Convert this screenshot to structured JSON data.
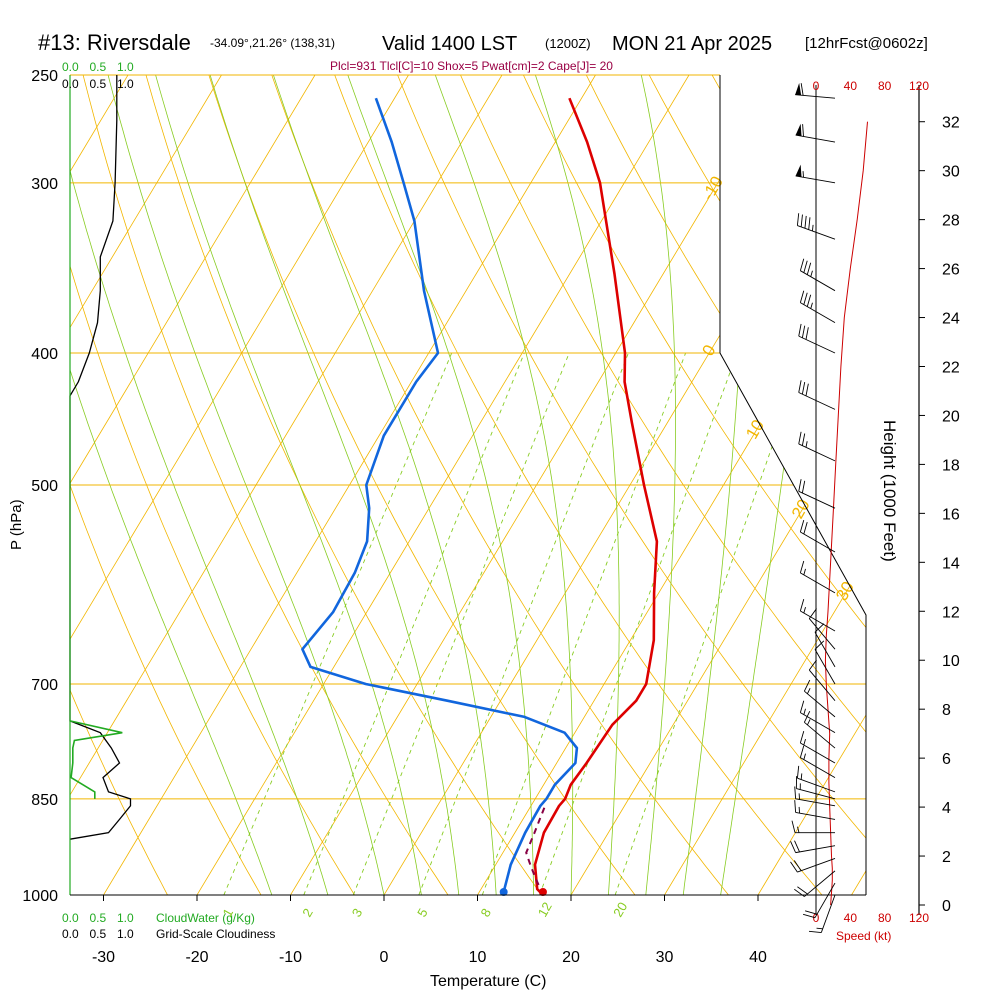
{
  "header": {
    "station": "#13: Riversdale",
    "coords": "-34.09°,21.26° (138,31)",
    "valid": "Valid 1400 LST",
    "zulu": "(1200Z)",
    "date": "MON 21 Apr 2025",
    "forecast": "[12hrFcst@0602z]",
    "indices": "Plcl=931 Tlcl[C]=10 Shox=5 Pwat[cm]=2 Cape[J]= 20"
  },
  "labels": {
    "ylabel": "P (hPa)",
    "xlabel": "Temperature (C)",
    "height_label": "Height (1000 Feet)",
    "speed_label": "Speed (kt)",
    "cloudwater_label": "CloudWater (g/Kg)",
    "cloudiness_label": "Grid-Scale Cloudiness"
  },
  "colors": {
    "isobar": "#f2b600",
    "dry_adiabat": "#f2b600",
    "moist_adiabat": "#88cc22",
    "mixing_ratio": "#88cc22",
    "temperature": "#dd0000",
    "dewpoint": "#1166dd",
    "parcel": "#880044",
    "cloudwater": "#22aa22",
    "cloudiness": "#000000",
    "windspeed": "#cc0000",
    "header_indices": "#990044"
  },
  "chart_data": {
    "type": "line",
    "plot": "skew-t",
    "pressure_ticks": [
      1000,
      850,
      700,
      500,
      400,
      300,
      250
    ],
    "temperature_ticks": [
      -30,
      -20,
      -10,
      0,
      10,
      20,
      30,
      40
    ],
    "height_ticks": [
      0,
      2,
      4,
      6,
      8,
      10,
      12,
      14,
      16,
      18,
      20,
      22,
      24,
      26,
      28,
      30,
      32
    ],
    "speed_ticks": [
      0,
      40,
      80,
      120
    ],
    "cloudwater_ticks": [
      "0.0",
      "0.5",
      "1.0"
    ],
    "cloudiness_ticks": [
      "0.0",
      "0.5",
      "1.0"
    ],
    "isotherm_labels": [
      "-30",
      "-20",
      "-10",
      "0",
      "10",
      "20",
      "30"
    ],
    "mixing_ratio_labels": [
      "1",
      "2",
      "3",
      "5",
      "8",
      "12",
      "20"
    ],
    "series": [
      {
        "name": "temperature",
        "p": [
          1000,
          990,
          950,
          900,
          860,
          850,
          830,
          800,
          750,
          720,
          700,
          650,
          600,
          550,
          500,
          450,
          420,
          400,
          350,
          300,
          280,
          260
        ],
        "t": [
          17,
          16,
          14.2,
          13.1,
          13,
          13.2,
          12.9,
          13.2,
          13.5,
          14.5,
          14.5,
          12.5,
          9.5,
          6.5,
          1.5,
          -3.8,
          -7.2,
          -9,
          -15.2,
          -22.6,
          -26.6,
          -31.3
        ]
      },
      {
        "name": "dewpoint",
        "p": [
          1000,
          990,
          950,
          900,
          860,
          850,
          830,
          800,
          780,
          760,
          740,
          720,
          700,
          680,
          660,
          620,
          580,
          550,
          520,
          500,
          460,
          420,
          400,
          360,
          320,
          300,
          280,
          260
        ],
        "td": [
          12.8,
          12.5,
          11.6,
          11.1,
          11,
          11.2,
          11.2,
          12,
          11.2,
          8.9,
          3.6,
          -5.7,
          -15.5,
          -22.5,
          -24.5,
          -23.6,
          -23.8,
          -24.5,
          -26.4,
          -28.2,
          -29.5,
          -29.5,
          -29,
          -34.5,
          -40,
          -43.6,
          -47.5,
          -52
        ]
      },
      {
        "name": "parcel",
        "p": [
          1000,
          970,
          950,
          931,
          900,
          880,
          860
        ],
        "t": [
          17,
          15,
          13.7,
          12.5,
          12.1,
          11.8,
          11.5
        ]
      }
    ],
    "surface_temperature": 17,
    "surface_dewpoint": 12.8,
    "wind_speed_kt": {
      "height_kft": [
        0,
        0.5,
        1,
        1.5,
        2,
        3,
        4,
        5,
        6,
        7,
        8,
        9,
        10,
        11,
        12,
        14,
        16,
        18,
        20,
        22,
        24,
        26,
        28,
        30,
        32
      ],
      "speed": [
        17,
        18,
        19,
        19,
        18,
        17,
        16,
        15,
        15,
        16,
        14,
        12,
        11,
        12,
        14,
        17,
        20,
        23,
        26,
        29,
        33,
        40,
        48,
        55,
        60
      ]
    },
    "wind_barbs": {
      "pressure": [
        1000,
        980,
        960,
        940,
        920,
        900,
        880,
        860,
        850,
        840,
        820,
        800,
        780,
        760,
        740,
        720,
        700,
        680,
        660,
        640,
        600,
        560,
        520,
        480,
        440,
        400,
        380,
        360,
        330,
        300,
        280,
        260
      ],
      "dir_deg": [
        200,
        210,
        230,
        250,
        260,
        270,
        280,
        280,
        285,
        290,
        300,
        300,
        310,
        300,
        310,
        320,
        330,
        330,
        320,
        300,
        300,
        300,
        295,
        295,
        295,
        295,
        300,
        300,
        290,
        280,
        280,
        275
      ],
      "speed_kt": [
        17,
        18,
        19,
        19,
        18,
        17,
        17,
        16,
        16,
        15,
        15,
        15,
        16,
        16,
        14,
        12,
        11,
        11,
        12,
        13,
        17,
        18,
        22,
        25,
        28,
        32,
        35,
        35,
        45,
        55,
        58,
        60
      ]
    },
    "cloudwater": {
      "p": [
        745,
        760,
        770,
        780,
        800,
        820,
        840,
        850
      ],
      "value": [
        0.0,
        0.95,
        0.08,
        0.05,
        0.05,
        0.02,
        0.45,
        0.45
      ]
    },
    "cloudiness": {
      "p": [
        250,
        270,
        300,
        320,
        340,
        360,
        380,
        400,
        420,
        430,
        745,
        760,
        780,
        800,
        820,
        840,
        850,
        860,
        880,
        900,
        910
      ],
      "value": [
        0.85,
        0.85,
        0.82,
        0.78,
        0.55,
        0.55,
        0.5,
        0.35,
        0.15,
        0.0,
        0.0,
        0.55,
        0.75,
        0.9,
        0.6,
        0.7,
        1.1,
        1.1,
        0.9,
        0.7,
        0.0
      ]
    }
  }
}
